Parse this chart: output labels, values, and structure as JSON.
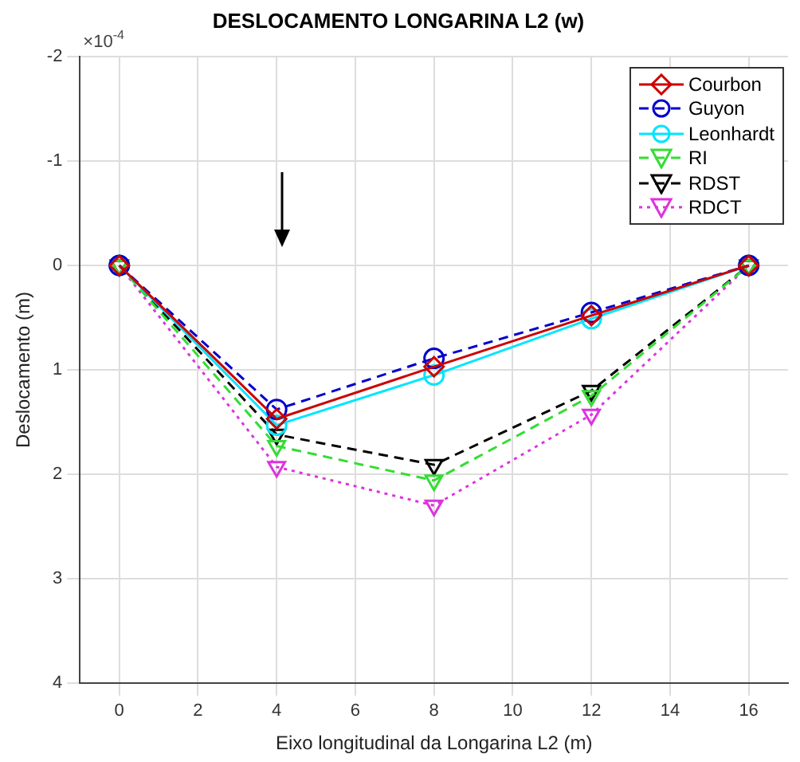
{
  "chart_data": {
    "type": "line",
    "title": "DESLOCAMENTO LONGARINA L2 (w)",
    "xlabel": "Eixo longitudinal da Longarina L2 (m)",
    "ylabel": "Deslocamento (m)",
    "annotations": [
      "×10$^{-4}$"
    ],
    "x": [
      0,
      4,
      8,
      12,
      16
    ],
    "xlim": [
      -1,
      17
    ],
    "xticks": [
      0,
      2,
      4,
      6,
      8,
      10,
      12,
      14,
      16
    ],
    "ylim": [
      4,
      -2
    ],
    "yticks": [
      -2,
      -1,
      0,
      1,
      2,
      3,
      4
    ],
    "grid": true,
    "legend": "top right",
    "series": [
      {
        "name": "Courbon",
        "color": "#cc0000",
        "marker": "diamond",
        "line_style": "solid",
        "values": [
          0,
          1.47,
          0.97,
          0.48,
          0
        ]
      },
      {
        "name": "Guyon",
        "color": "#0000cc",
        "marker": "circle",
        "line_style": "dashed",
        "values": [
          0,
          1.38,
          0.89,
          0.45,
          0
        ]
      },
      {
        "name": "Leonhardt",
        "color": "#00e5ff",
        "marker": "circle",
        "line_style": "solid",
        "values": [
          0,
          1.53,
          1.05,
          0.51,
          0
        ]
      },
      {
        "name": "RI",
        "color": "#33dd33",
        "marker": "triangle",
        "line_style": "dashed",
        "values": [
          0,
          1.73,
          2.06,
          1.25,
          0
        ]
      },
      {
        "name": "RDST",
        "color": "#000000",
        "marker": "triangle",
        "line_style": "dashed",
        "values": [
          0,
          1.62,
          1.91,
          1.2,
          0
        ]
      },
      {
        "name": "RDCT",
        "color": "#dd33dd",
        "marker": "triangle",
        "line_style": "dotted",
        "values": [
          0,
          1.93,
          2.3,
          1.43,
          0
        ]
      }
    ]
  }
}
